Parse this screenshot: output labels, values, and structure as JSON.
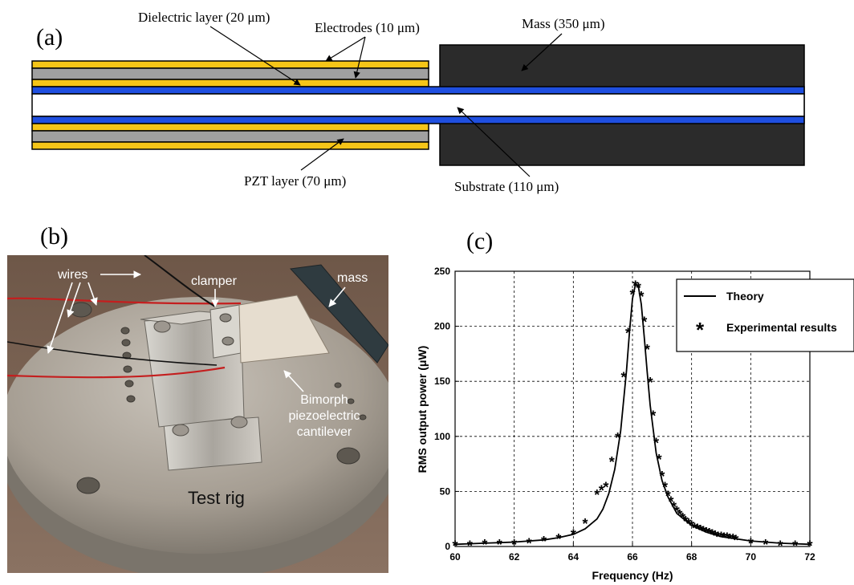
{
  "panel_a": {
    "label": "(a)",
    "dielectric": "Dielectric layer (20 μm)",
    "electrodes": "Electrodes (10 μm)",
    "mass": "Mass (350 μm)",
    "pzt": "PZT layer (70 μm)",
    "substrate": "Substrate (110 μm)",
    "colors": {
      "electrode": "#f5c518",
      "pzt": "#a0a0a0",
      "dielectric": "#1f4fe0",
      "mass": "#2b2b2b",
      "substrate": "#ffffff"
    }
  },
  "panel_b": {
    "label": "(b)",
    "wires": "wires",
    "clamper": "clamper",
    "mass": "mass",
    "cantilever_line1": "Bimorph",
    "cantilever_line2": "piezoelectric",
    "cantilever_line3": "cantilever",
    "test_rig": "Test rig"
  },
  "panel_c": {
    "label": "(c)"
  },
  "chart_data": {
    "type": "line",
    "xlabel": "Frequency (Hz)",
    "ylabel": "RMS output power (μW)",
    "xlim": [
      60,
      72
    ],
    "ylim": [
      0,
      250
    ],
    "xticks": [
      60,
      62,
      64,
      66,
      68,
      70,
      72
    ],
    "yticks": [
      0,
      50,
      100,
      150,
      200,
      250
    ],
    "grid": true,
    "legend_position": "top-right",
    "series": [
      {
        "name": "Theory",
        "style": "solid-line",
        "x": [
          60,
          61,
          62,
          63,
          63.5,
          64,
          64.4,
          64.8,
          65,
          65.2,
          65.4,
          65.6,
          65.8,
          65.9,
          66,
          66.1,
          66.2,
          66.3,
          66.4,
          66.5,
          66.6,
          66.8,
          67,
          67.2,
          67.5,
          68,
          68.5,
          69,
          70,
          71,
          72
        ],
        "y": [
          2,
          3,
          4,
          6,
          8,
          11,
          16,
          25,
          34,
          48,
          70,
          105,
          160,
          195,
          225,
          238,
          236,
          220,
          190,
          158,
          128,
          85,
          60,
          45,
          30,
          19,
          13,
          9,
          5,
          3,
          2
        ]
      },
      {
        "name": "Experimental results",
        "style": "asterisk-marker",
        "x": [
          60,
          60.5,
          61,
          61.5,
          62,
          62.5,
          63,
          63.5,
          64,
          64.4,
          64.8,
          64.95,
          65.1,
          65.3,
          65.5,
          65.7,
          65.85,
          66,
          66.1,
          66.2,
          66.3,
          66.4,
          66.5,
          66.6,
          66.7,
          66.8,
          66.9,
          67,
          67.1,
          67.2,
          67.3,
          67.4,
          67.5,
          67.6,
          67.7,
          67.8,
          67.9,
          68,
          68.1,
          68.2,
          68.3,
          68.4,
          68.5,
          68.6,
          68.7,
          68.8,
          68.9,
          69,
          69.1,
          69.2,
          69.3,
          69.4,
          69.5,
          70,
          70.5,
          71,
          71.5,
          72
        ],
        "y": [
          2,
          2,
          3,
          3,
          3,
          4,
          6,
          8,
          12,
          22,
          48,
          52,
          55,
          78,
          100,
          155,
          195,
          230,
          238,
          236,
          228,
          205,
          180,
          150,
          120,
          95,
          80,
          65,
          55,
          47,
          42,
          37,
          33,
          30,
          27,
          24,
          22,
          20,
          18,
          17,
          16,
          15,
          14,
          13,
          12,
          11,
          10,
          10,
          9,
          9,
          8,
          8,
          7,
          4,
          3,
          2,
          2,
          2
        ]
      }
    ]
  }
}
